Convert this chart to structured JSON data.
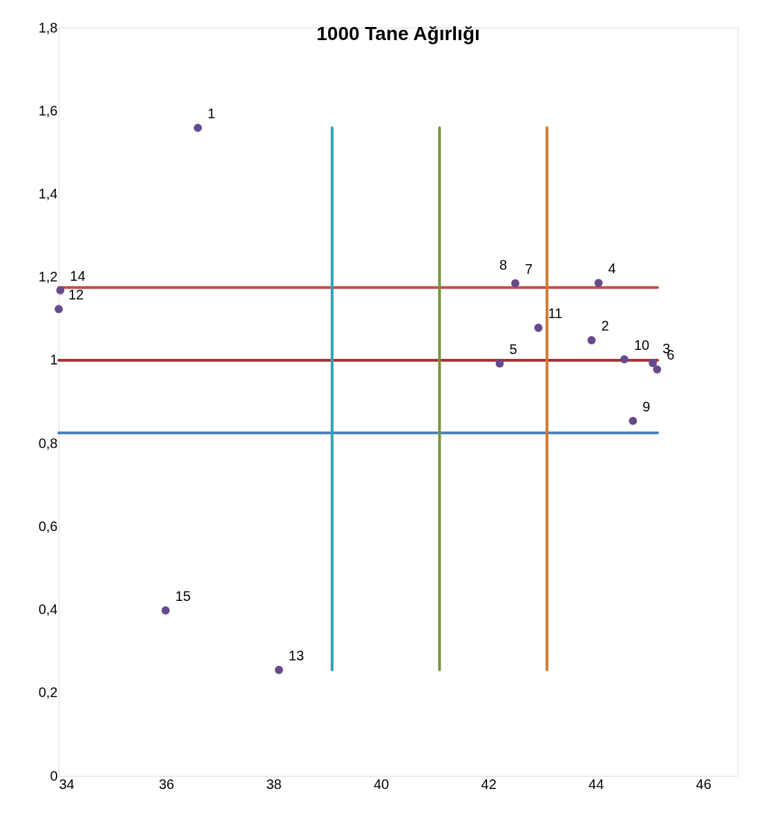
{
  "chart_data": {
    "type": "scatter",
    "title": "1000 Tane Ağırlığı",
    "grid": false,
    "marker": "circle",
    "xlim": [
      34,
      46.64
    ],
    "xticks": [
      34,
      36,
      38,
      40,
      42,
      44,
      46
    ],
    "ylim": [
      0,
      1.8
    ],
    "yticks": [
      0,
      {
        "value": 0.2,
        "label": "0,2"
      },
      {
        "value": 0.4,
        "label": "0,4"
      },
      {
        "value": 0.6,
        "label": "0,6"
      },
      {
        "value": 0.8,
        "label": "0,8"
      },
      1,
      {
        "value": 1.2,
        "label": "1,2"
      },
      {
        "value": 1.4,
        "label": "1,4"
      },
      {
        "value": 1.6,
        "label": "1,6"
      },
      {
        "value": 1.8,
        "label": "1,8"
      }
    ],
    "series": [
      {
        "type": "line",
        "marker": "none",
        "color": "#c0504d",
        "x": [
          34,
          45.15
        ],
        "values": [
          1.175,
          1.175
        ]
      },
      {
        "type": "line",
        "marker": "none",
        "color": "#a5322f",
        "x": [
          34,
          45.15
        ],
        "values": [
          1.0,
          1.0
        ]
      },
      {
        "type": "line",
        "marker": "none",
        "color": "#4f81bd",
        "x": [
          34,
          45.15
        ],
        "values": [
          0.825,
          0.825
        ]
      },
      {
        "type": "line",
        "marker": "none",
        "color": "#31a0b0",
        "x": [
          39.09,
          39.09
        ],
        "values": [
          0.255,
          1.559
        ]
      },
      {
        "type": "line",
        "marker": "none",
        "color": "#77933c",
        "x": [
          41.09,
          41.09
        ],
        "values": [
          0.255,
          1.559
        ]
      },
      {
        "type": "line",
        "marker": "none",
        "color": "#d4782f",
        "x": [
          43.09,
          43.09
        ],
        "values": [
          0.255,
          1.559
        ]
      },
      {
        "color": "#664a8a",
        "x": [
          36.59,
          43.92,
          45.06,
          44.05,
          42.21,
          45.14,
          42.5,
          44.69,
          44.53,
          42.93,
          34.0,
          38.1,
          34.03,
          35.99
        ],
        "values": [
          1.559,
          1.048,
          0.993,
          1.186,
          0.992,
          0.978,
          1.185,
          0.854,
          1.002,
          1.078,
          1.123,
          0.255,
          1.168,
          0.398
        ]
      }
    ],
    "annotations": [
      {
        "text": "1",
        "x": 36.59,
        "y": 1.559
      },
      {
        "text": "2",
        "x": 43.92,
        "y": 1.048
      },
      {
        "text": "3",
        "x": 45.06,
        "y": 0.993
      },
      {
        "text": "4",
        "x": 44.05,
        "y": 1.186
      },
      {
        "text": "5",
        "x": 42.21,
        "y": 0.992
      },
      {
        "text": "6",
        "x": 45.14,
        "y": 0.978
      },
      {
        "text": "7",
        "x": 42.5,
        "y": 1.185
      },
      {
        "text": "8",
        "x": 42.5,
        "y": 1.185
      },
      {
        "text": "9",
        "x": 44.69,
        "y": 0.854
      },
      {
        "text": "10",
        "x": 44.53,
        "y": 1.002
      },
      {
        "text": "11",
        "x": 42.93,
        "y": 1.078
      },
      {
        "text": "12",
        "x": 34.0,
        "y": 1.123
      },
      {
        "text": "13",
        "x": 38.1,
        "y": 0.255
      },
      {
        "text": "14",
        "x": 34.03,
        "y": 1.168
      },
      {
        "text": "15",
        "x": 35.99,
        "y": 0.398
      }
    ]
  }
}
